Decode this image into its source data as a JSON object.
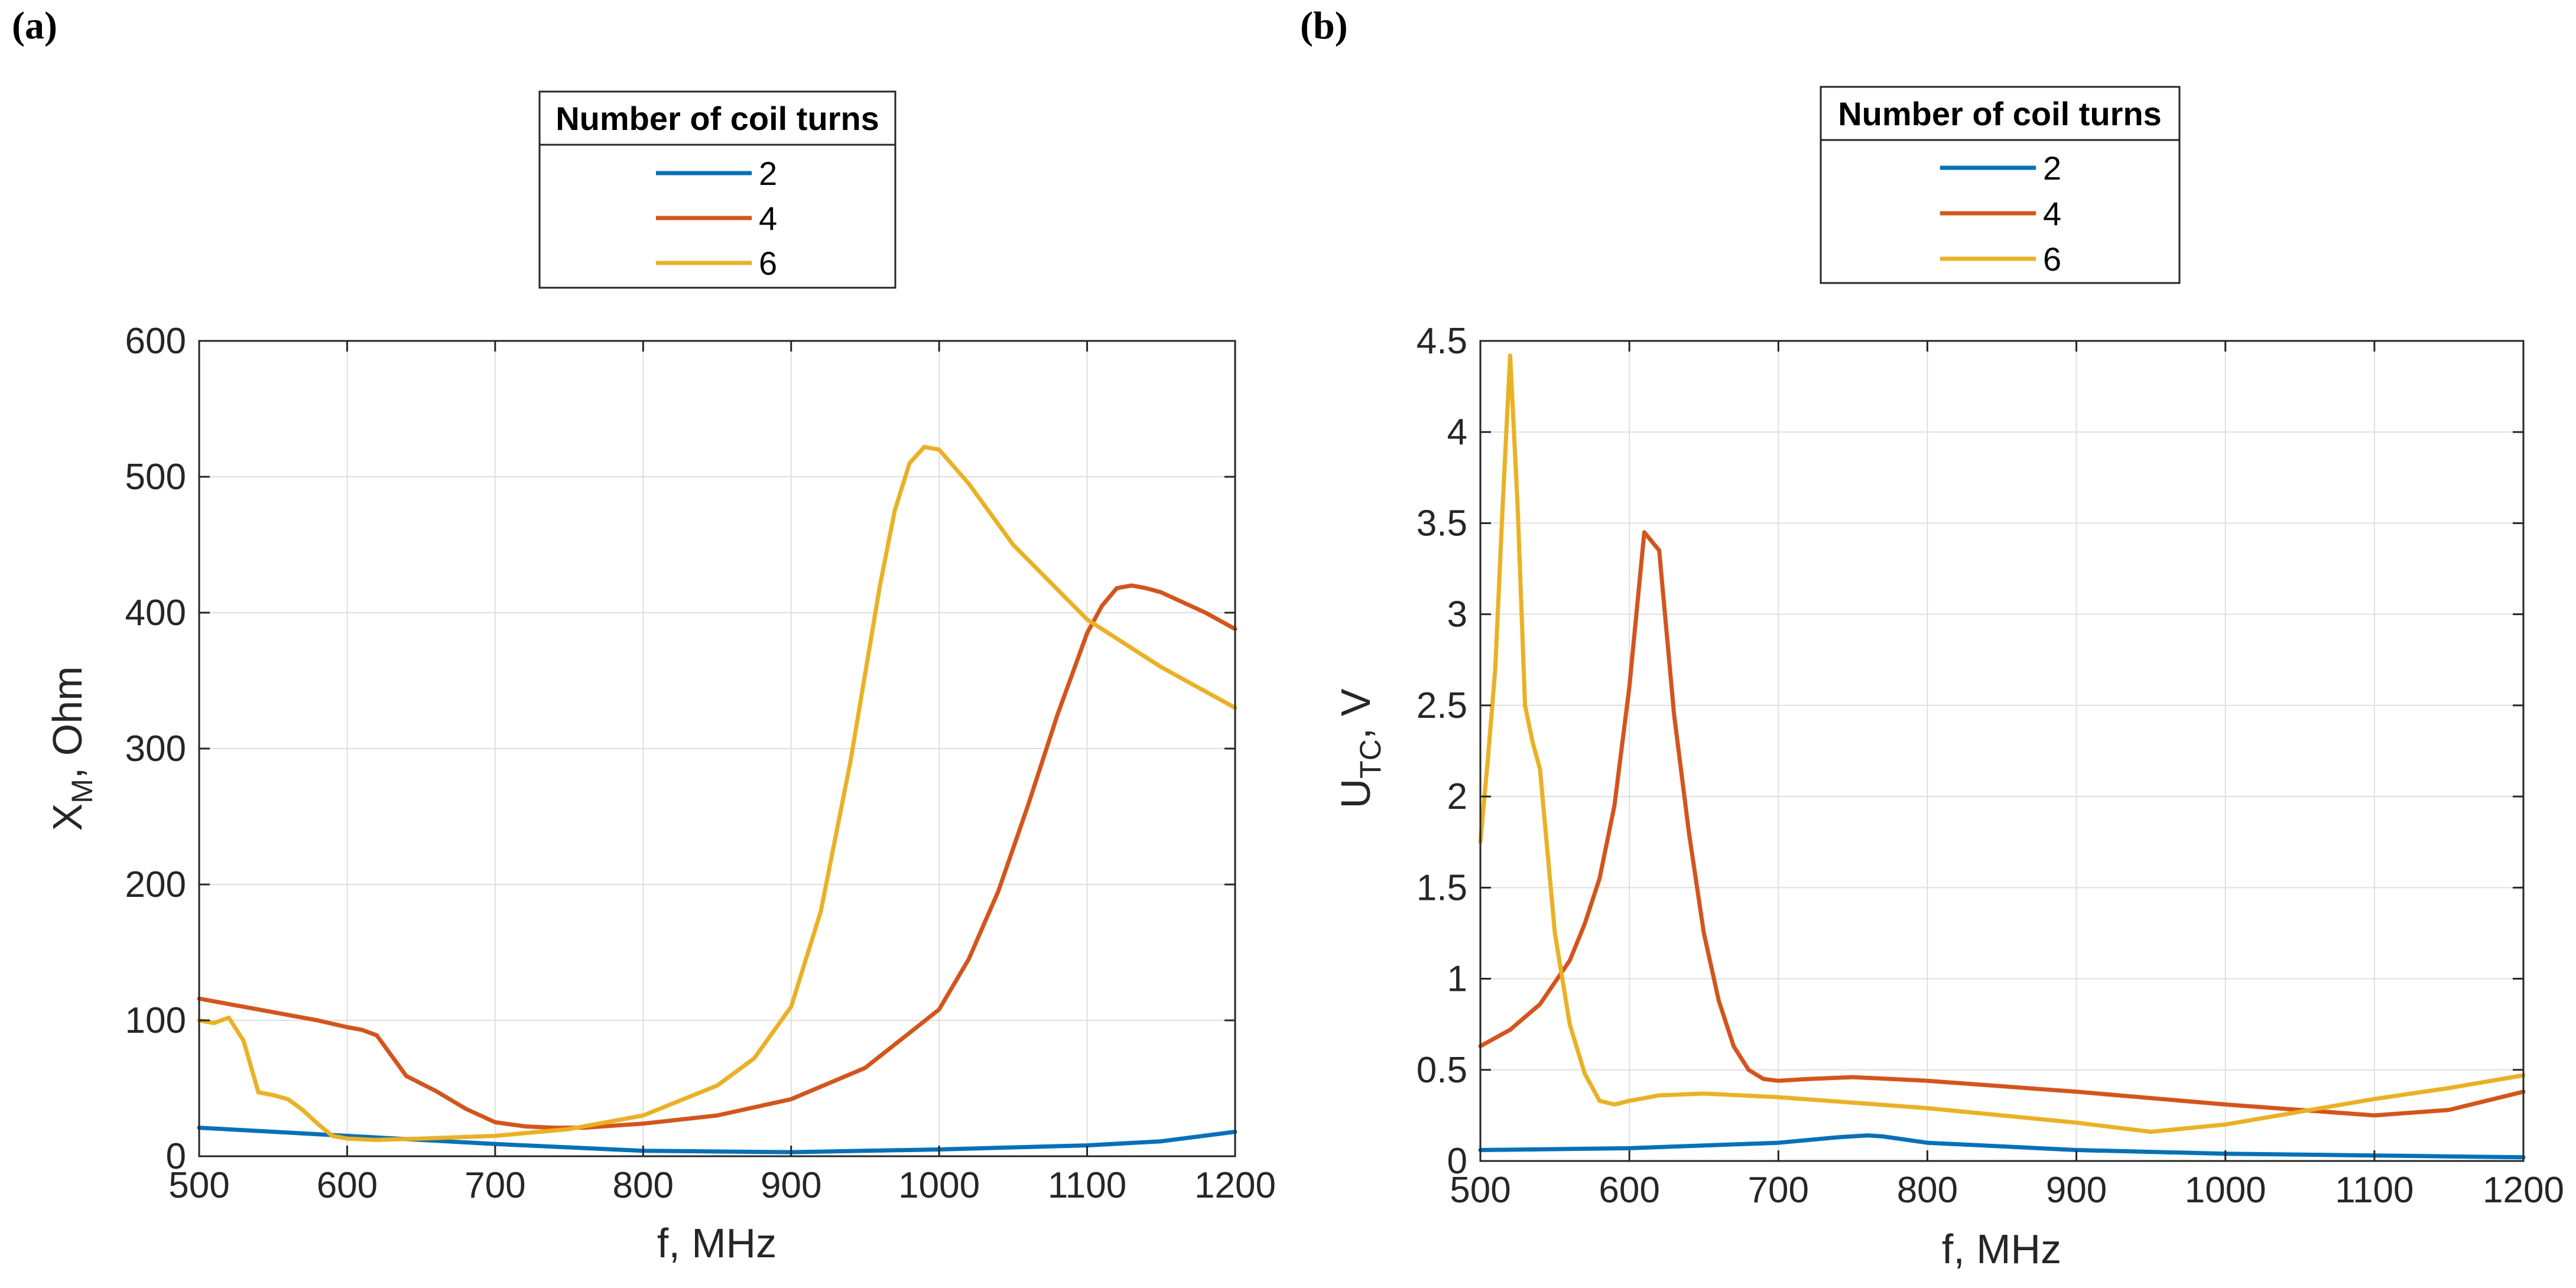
{
  "chart_data": [
    {
      "panel": "(a)",
      "type": "line",
      "xlabel": "f, MHz",
      "ylabel": {
        "main": "X",
        "sub": "M",
        "rest": ", Ohm"
      },
      "xlim": [
        500,
        1200
      ],
      "ylim": [
        0,
        600
      ],
      "xticks": [
        500,
        600,
        700,
        800,
        900,
        1000,
        1100,
        1200
      ],
      "yticks": [
        0,
        100,
        200,
        300,
        400,
        500,
        600
      ],
      "xtick_labels": [
        "500",
        "600",
        "700",
        "800",
        "900",
        "1000",
        "1100",
        "1200"
      ],
      "ytick_labels": [
        "0",
        "100",
        "200",
        "300",
        "400",
        "500",
        "600"
      ],
      "grid": true,
      "legend": {
        "title": "Number of coil turns",
        "placement": "top-center-outside",
        "entries": [
          "2",
          "4",
          "6"
        ]
      },
      "series": [
        {
          "name": "2",
          "color": "#0072BD",
          "x": [
            500,
            600,
            700,
            800,
            900,
            1000,
            1100,
            1150,
            1200
          ],
          "y": [
            21,
            15,
            9,
            4,
            3,
            5,
            8,
            11,
            18
          ]
        },
        {
          "name": "4",
          "color": "#D95319",
          "x": [
            500,
            520,
            540,
            560,
            580,
            600,
            610,
            620,
            630,
            640,
            660,
            680,
            700,
            720,
            740,
            760,
            800,
            850,
            900,
            950,
            1000,
            1020,
            1040,
            1060,
            1080,
            1100,
            1110,
            1120,
            1130,
            1140,
            1150,
            1160,
            1180,
            1200
          ],
          "y": [
            116,
            112,
            108,
            104,
            100,
            95,
            93,
            89,
            74,
            59,
            48,
            35,
            25,
            22,
            21,
            21,
            24,
            30,
            42,
            65,
            108,
            145,
            195,
            258,
            325,
            385,
            405,
            418,
            420,
            418,
            415,
            410,
            400,
            388
          ]
        },
        {
          "name": "6",
          "color": "#EDB120",
          "x": [
            500,
            510,
            520,
            530,
            540,
            550,
            560,
            570,
            580,
            590,
            600,
            620,
            650,
            700,
            750,
            800,
            850,
            875,
            900,
            920,
            940,
            960,
            970,
            980,
            990,
            1000,
            1020,
            1050,
            1100,
            1150,
            1200
          ],
          "y": [
            100,
            98,
            102,
            85,
            47,
            45,
            42,
            34,
            24,
            15,
            13,
            12,
            13,
            15,
            20,
            30,
            52,
            72,
            110,
            180,
            290,
            420,
            475,
            510,
            522,
            520,
            495,
            450,
            395,
            360,
            330
          ]
        }
      ]
    },
    {
      "panel": "(b)",
      "type": "line",
      "xlabel": "f, MHz",
      "ylabel": {
        "main": "U",
        "sub": "TC",
        "rest": ", V"
      },
      "xlim": [
        500,
        1200
      ],
      "ylim": [
        0,
        4.5
      ],
      "xticks": [
        500,
        600,
        700,
        800,
        900,
        1000,
        1100,
        1200
      ],
      "yticks": [
        0,
        0.5,
        1,
        1.5,
        2,
        2.5,
        3,
        3.5,
        4,
        4.5
      ],
      "xtick_labels": [
        "500",
        "600",
        "700",
        "800",
        "900",
        "1000",
        "1100",
        "1200"
      ],
      "ytick_labels": [
        "0",
        "0.5",
        "1",
        "1.5",
        "2",
        "2.5",
        "3",
        "3.5",
        "4",
        "4.5"
      ],
      "grid": true,
      "legend": {
        "title": "Number of coil turns",
        "placement": "top-center-outside",
        "entries": [
          "2",
          "4",
          "6"
        ]
      },
      "series": [
        {
          "name": "2",
          "color": "#0072BD",
          "x": [
            500,
            600,
            700,
            740,
            760,
            770,
            800,
            900,
            1000,
            1100,
            1200
          ],
          "y": [
            0.06,
            0.07,
            0.1,
            0.13,
            0.14,
            0.135,
            0.1,
            0.06,
            0.04,
            0.03,
            0.02
          ]
        },
        {
          "name": "4",
          "color": "#D95319",
          "x": [
            500,
            520,
            540,
            550,
            560,
            570,
            580,
            590,
            600,
            610,
            620,
            630,
            640,
            650,
            660,
            670,
            680,
            690,
            700,
            720,
            750,
            800,
            900,
            1000,
            1050,
            1100,
            1150,
            1200
          ],
          "y": [
            0.63,
            0.72,
            0.86,
            0.98,
            1.1,
            1.3,
            1.55,
            1.95,
            2.6,
            3.45,
            3.35,
            2.45,
            1.8,
            1.25,
            0.88,
            0.63,
            0.5,
            0.45,
            0.44,
            0.45,
            0.46,
            0.44,
            0.38,
            0.31,
            0.28,
            0.25,
            0.28,
            0.38
          ]
        },
        {
          "name": "6",
          "color": "#EDB120",
          "x": [
            500,
            505,
            510,
            515,
            520,
            525,
            530,
            535,
            540,
            545,
            550,
            560,
            570,
            580,
            590,
            600,
            620,
            650,
            700,
            800,
            900,
            950,
            1000,
            1050,
            1100,
            1150,
            1200
          ],
          "y": [
            1.75,
            2.2,
            2.7,
            3.6,
            4.42,
            3.6,
            2.5,
            2.3,
            2.15,
            1.7,
            1.25,
            0.75,
            0.48,
            0.33,
            0.31,
            0.33,
            0.36,
            0.37,
            0.35,
            0.29,
            0.21,
            0.16,
            0.2,
            0.27,
            0.34,
            0.4,
            0.47
          ]
        }
      ]
    }
  ]
}
